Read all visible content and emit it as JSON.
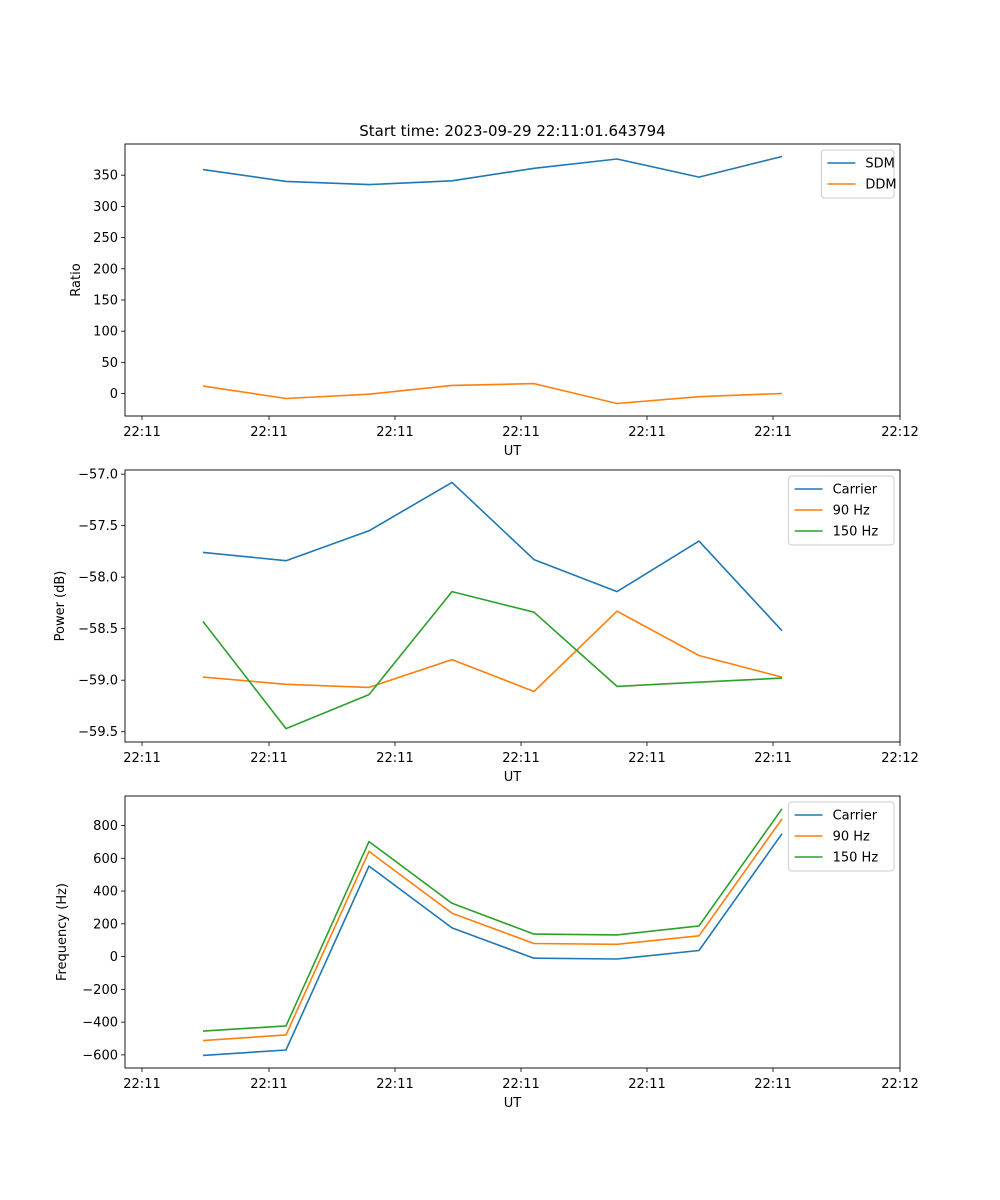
{
  "figure_title": "Start time: 2023-09-29 22:11:01.643794",
  "chart_data": [
    {
      "type": "line",
      "xlabel": "UT",
      "ylabel": "Ratio",
      "xtick_labels": [
        "22:11",
        "22:11",
        "22:11",
        "22:11",
        "22:11",
        "22:11",
        "22:12"
      ],
      "yticks": [
        0,
        50,
        100,
        150,
        200,
        250,
        300,
        350
      ],
      "ylim": [
        -36,
        400
      ],
      "legend_position": "top-right",
      "series": [
        {
          "name": "SDM",
          "color": "#1f77b4",
          "values": [
            359,
            340,
            335,
            341,
            361,
            376,
            347,
            380
          ]
        },
        {
          "name": "DDM",
          "color": "#ff7f0e",
          "values": [
            12,
            -8,
            -1,
            13,
            16,
            -16,
            -5,
            0
          ]
        }
      ]
    },
    {
      "type": "line",
      "xlabel": "UT",
      "ylabel": "Power (dB)",
      "xtick_labels": [
        "22:11",
        "22:11",
        "22:11",
        "22:11",
        "22:11",
        "22:11",
        "22:12"
      ],
      "yticks": [
        -59.5,
        -59.0,
        -58.5,
        -58.0,
        -57.5,
        -57.0
      ],
      "ytick_labels": [
        "−59.5",
        "−59.0",
        "−58.5",
        "−58.0",
        "−57.5",
        "−57.0"
      ],
      "ylim": [
        -59.6,
        -56.96
      ],
      "legend_position": "top-right",
      "series": [
        {
          "name": "Carrier",
          "color": "#1f77b4",
          "values": [
            -57.76,
            -57.84,
            -57.55,
            -57.08,
            -57.83,
            -58.14,
            -57.65,
            -58.52
          ]
        },
        {
          "name": "90 Hz",
          "color": "#ff7f0e",
          "values": [
            -58.97,
            -59.04,
            -59.07,
            -58.8,
            -59.11,
            -58.33,
            -58.76,
            -58.97
          ]
        },
        {
          "name": "150 Hz",
          "color": "#2ca02c",
          "values": [
            -58.43,
            -59.47,
            -59.14,
            -58.14,
            -58.34,
            -59.06,
            -59.02,
            -58.98
          ]
        }
      ]
    },
    {
      "type": "line",
      "xlabel": "UT",
      "ylabel": "Frequency (Hz)",
      "xtick_labels": [
        "22:11",
        "22:11",
        "22:11",
        "22:11",
        "22:11",
        "22:11",
        "22:12"
      ],
      "yticks": [
        -600,
        -400,
        -200,
        0,
        200,
        400,
        600,
        800
      ],
      "ytick_labels": [
        "−600",
        "−400",
        "−200",
        "0",
        "200",
        "400",
        "600",
        "800"
      ],
      "ylim": [
        -680,
        980
      ],
      "legend_position": "top-right",
      "series": [
        {
          "name": "Carrier",
          "color": "#1f77b4",
          "values": [
            -603,
            -570,
            552,
            175,
            -10,
            -15,
            37,
            750
          ]
        },
        {
          "name": "90 Hz",
          "color": "#ff7f0e",
          "values": [
            -513,
            -478,
            642,
            265,
            80,
            75,
            127,
            840
          ]
        },
        {
          "name": "150 Hz",
          "color": "#2ca02c",
          "values": [
            -455,
            -423,
            702,
            325,
            137,
            132,
            187,
            902
          ]
        }
      ]
    }
  ]
}
